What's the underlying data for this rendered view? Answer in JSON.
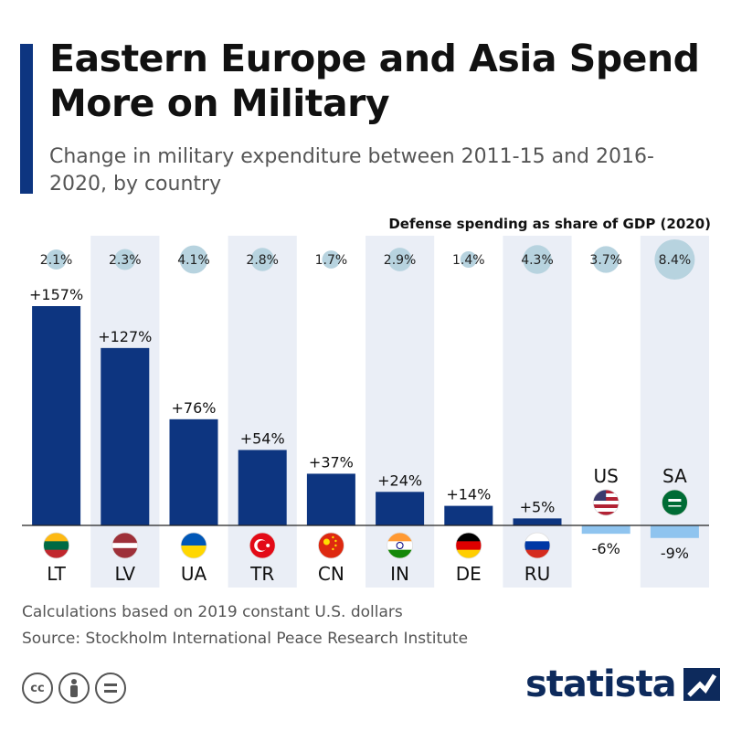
{
  "chart_data": {
    "type": "bar",
    "title": "Eastern Europe and Asia Spend More on Military",
    "subtitle": "Change in military expenditure between 2011-15 and 2016-2020, by country",
    "gdp_header": "Defense spending as share of GDP (2020)",
    "categories": [
      "LT",
      "LV",
      "UA",
      "TR",
      "CN",
      "IN",
      "DE",
      "RU",
      "US",
      "SA"
    ],
    "values": [
      157,
      127,
      76,
      54,
      37,
      24,
      14,
      5,
      -6,
      -9
    ],
    "value_labels": [
      "+157%",
      "+127%",
      "+76%",
      "+54%",
      "+37%",
      "+24%",
      "+14%",
      "+5%",
      "-6%",
      "-9%"
    ],
    "gdp_share": [
      2.1,
      2.3,
      4.1,
      2.8,
      1.7,
      2.9,
      1.4,
      4.3,
      3.7,
      8.4
    ],
    "gdp_labels": [
      "2.1%",
      "2.3%",
      "4.1%",
      "2.8%",
      "1.7%",
      "2.9%",
      "1.4%",
      "4.3%",
      "3.7%",
      "8.4%"
    ],
    "flags": [
      "lithuania-flag",
      "latvia-flag",
      "ukraine-flag",
      "turkey-flag",
      "china-flag",
      "india-flag",
      "germany-flag",
      "russia-flag",
      "usa-flag",
      "saudi-arabia-flag"
    ],
    "colors": {
      "positive": "#0d3580",
      "negative": "#8fc4ef",
      "bubble": "#b7d3df",
      "stripe": "#eaeef6",
      "accent": "#0d3580"
    }
  },
  "footnotes": {
    "note": "Calculations based on 2019 constant U.S. dollars",
    "source": "Source: Stockholm International Peace Research Institute"
  },
  "brand": {
    "name": "statista"
  },
  "license_icons": [
    "cc-icon",
    "attribution-icon",
    "no-derivatives-icon"
  ]
}
